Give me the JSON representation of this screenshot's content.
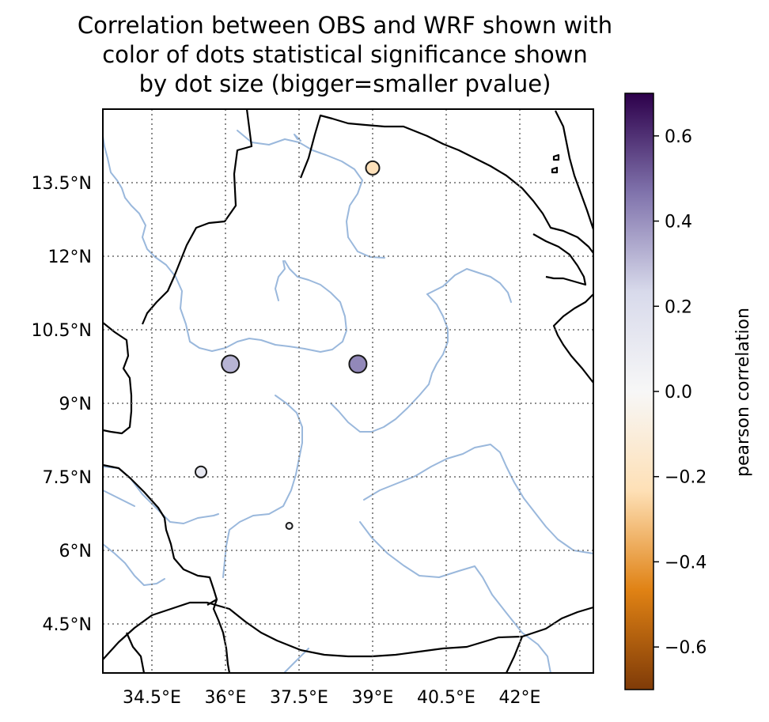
{
  "title_lines": [
    "Correlation between OBS and WRF shown with",
    "color of dots statistical significance shown",
    "by dot size (bigger=smaller pvalue)"
  ],
  "map": {
    "lon_range": [
      33.5,
      43.5
    ],
    "lat_range": [
      3.5,
      15.0
    ],
    "lon_ticks": [
      {
        "value": 34.5,
        "label": "34.5°E"
      },
      {
        "value": 36.0,
        "label": "36°E"
      },
      {
        "value": 37.5,
        "label": "37.5°E"
      },
      {
        "value": 39.0,
        "label": "39°E"
      },
      {
        "value": 40.5,
        "label": "40.5°E"
      },
      {
        "value": 42.0,
        "label": "42°E"
      }
    ],
    "lat_ticks": [
      {
        "value": 13.5,
        "label": "13.5°N"
      },
      {
        "value": 12.0,
        "label": "12°N"
      },
      {
        "value": 10.5,
        "label": "10.5°N"
      },
      {
        "value": 9.0,
        "label": "9°N"
      },
      {
        "value": 7.5,
        "label": "7.5°N"
      },
      {
        "value": 6.0,
        "label": "6°N"
      },
      {
        "value": 4.5,
        "label": "4.5°N"
      }
    ],
    "grid": "dotted",
    "border_color": "#000000",
    "river_color": "#9ab8dc"
  },
  "stations": [
    {
      "lon": 36.1,
      "lat": 9.8,
      "correlation": 0.32,
      "significance": "high"
    },
    {
      "lon": 38.7,
      "lat": 9.8,
      "correlation": 0.42,
      "significance": "high"
    },
    {
      "lon": 39.0,
      "lat": 13.8,
      "correlation": -0.22,
      "significance": "medium"
    },
    {
      "lon": 35.5,
      "lat": 7.6,
      "correlation": 0.12,
      "significance": "low"
    },
    {
      "lon": 37.3,
      "lat": 6.5,
      "correlation": 0.05,
      "significance": "very-low"
    }
  ],
  "colorbar": {
    "label": "pearson correlation",
    "range": [
      -0.7,
      0.7
    ],
    "ticks": [
      {
        "value": 0.6,
        "label": "0.6"
      },
      {
        "value": 0.4,
        "label": "0.4"
      },
      {
        "value": 0.2,
        "label": "0.2"
      },
      {
        "value": 0.0,
        "label": "0.0"
      },
      {
        "value": -0.2,
        "label": "−0.2"
      },
      {
        "value": -0.4,
        "label": "−0.4"
      },
      {
        "value": -0.6,
        "label": "−0.6"
      }
    ],
    "colormap": [
      "#7f3b08",
      "#e08214",
      "#fee0b6",
      "#f7f7f7",
      "#d8daeb",
      "#8073ac",
      "#2d004b"
    ]
  }
}
